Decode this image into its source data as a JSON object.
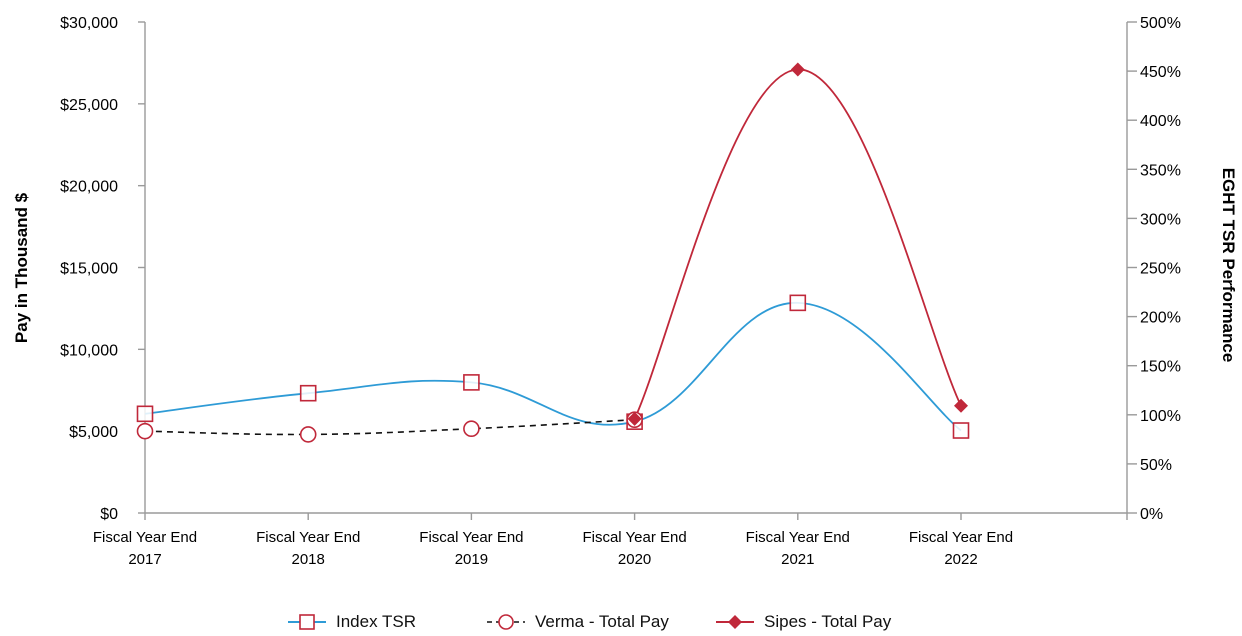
{
  "chart_data": {
    "type": "line",
    "categories": [
      [
        "Fiscal Year End",
        "2017"
      ],
      [
        "Fiscal Year End",
        "2018"
      ],
      [
        "Fiscal Year End",
        "2019"
      ],
      [
        "Fiscal Year End",
        "2020"
      ],
      [
        "Fiscal Year End",
        "2021"
      ],
      [
        "Fiscal Year End",
        "2022"
      ]
    ],
    "ylabel_left": "Pay in Thousand $",
    "ylabel_right": "EGHT TSR Performance",
    "ylim_left": [
      0,
      30000
    ],
    "ylim_right": [
      0,
      500
    ],
    "left_ticks": [
      "$0",
      "$5,000",
      "$10,000",
      "$15,000",
      "$20,000",
      "$25,000",
      "$30,000"
    ],
    "right_ticks": [
      "0%",
      "50%",
      "100%",
      "150%",
      "200%",
      "250%",
      "300%",
      "350%",
      "400%",
      "450%",
      "500%"
    ],
    "grid": false,
    "legend_position": "bottom",
    "series": [
      {
        "name": "Index TSR",
        "axis": "right",
        "values": [
          101,
          122,
          133,
          93,
          214,
          84
        ],
        "line_color": "#2E9BD6",
        "marker": "open-square",
        "marker_color": "#C0283A",
        "dashed": false
      },
      {
        "name": "Verma - Total Pay",
        "axis": "left",
        "values": [
          5000,
          4800,
          5150,
          5700,
          null,
          null
        ],
        "line_color": "#111111",
        "marker": "open-circle",
        "marker_color": "#C0283A",
        "dashed": true
      },
      {
        "name": "Sipes - Total Pay",
        "axis": "left",
        "values": [
          null,
          null,
          null,
          5750,
          27100,
          6550
        ],
        "line_color": "#C0283A",
        "marker": "filled-diamond",
        "marker_color": "#C0283A",
        "dashed": false
      }
    ]
  }
}
